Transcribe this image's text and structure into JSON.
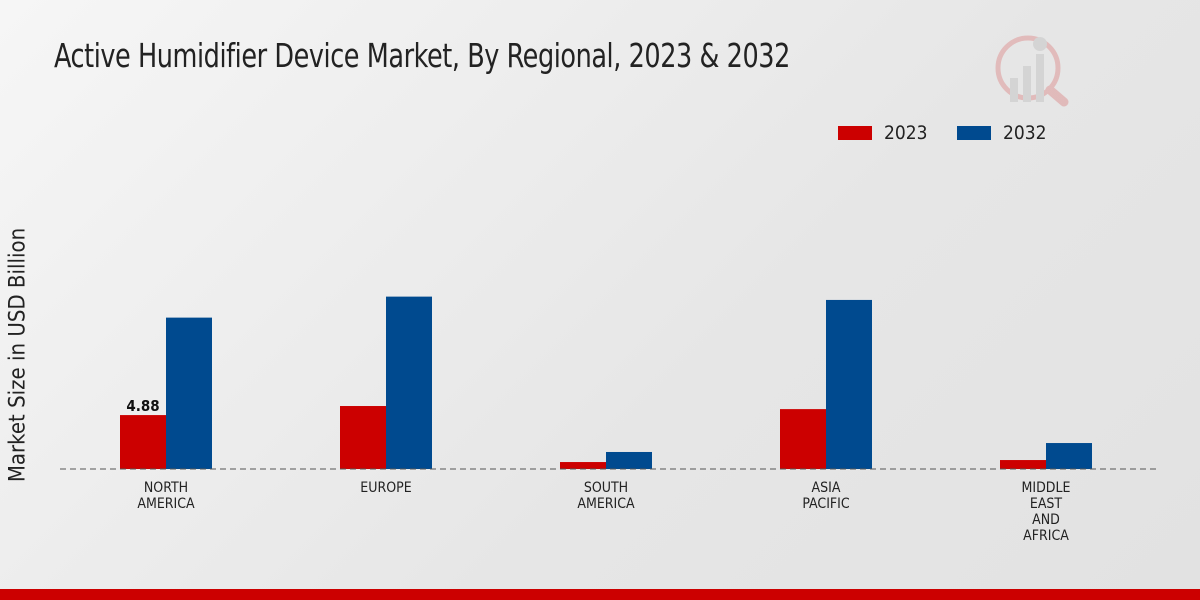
{
  "title": "Active Humidifier Device Market, By Regional, 2023 & 2032",
  "chart_data": {
    "type": "bar",
    "title": "Active Humidifier Device Market, By Regional, 2023 & 2032",
    "xlabel": "",
    "ylabel": "Market Size in USD Billion",
    "ylim": [
      0,
      20
    ],
    "grid": false,
    "legend_position": "top-right",
    "categories": [
      [
        "NORTH",
        "AMERICA"
      ],
      [
        "EUROPE"
      ],
      [
        "SOUTH",
        "AMERICA"
      ],
      [
        "ASIA",
        "PACIFIC"
      ],
      [
        "MIDDLE",
        "EAST",
        "AND",
        "AFRICA"
      ]
    ],
    "series": [
      {
        "name": "2023",
        "color": "#cc0000",
        "values": [
          4.88,
          5.7,
          0.63,
          5.42,
          0.81
        ]
      },
      {
        "name": "2032",
        "color": "#004a8f",
        "values": [
          13.7,
          15.6,
          1.54,
          15.3,
          2.35
        ]
      }
    ],
    "annotations": [
      {
        "series": 0,
        "index": 0,
        "text": "4.88"
      }
    ]
  }
}
